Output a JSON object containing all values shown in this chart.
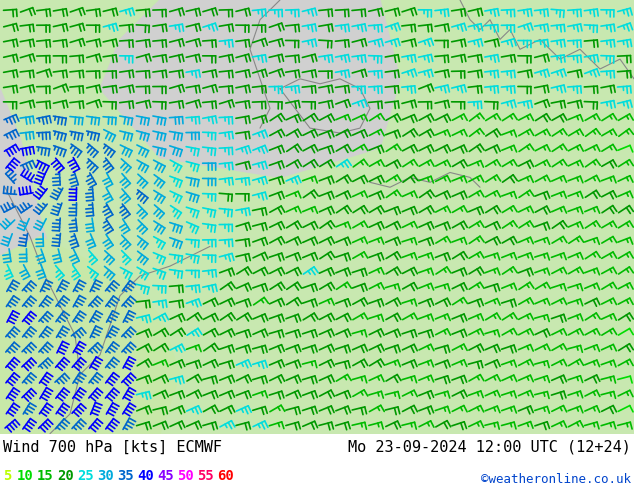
{
  "title_left": "Wind 700 hPa [kts] ECMWF",
  "title_right": "Mo 23-09-2024 12:00 UTC (12+24)",
  "credit": "©weatheronline.co.uk",
  "legend_values": [
    5,
    10,
    15,
    20,
    25,
    30,
    35,
    40,
    45,
    50,
    55,
    60
  ],
  "legend_colors": [
    "#bbff00",
    "#00dd00",
    "#00bb00",
    "#009900",
    "#00dddd",
    "#00aadd",
    "#0066cc",
    "#0000ff",
    "#8800ff",
    "#ff00ff",
    "#ff0066",
    "#ff0000"
  ],
  "bg_color": "#ffffff",
  "map_bg_sea": "#cccccc",
  "map_bg_land": "#aaddaa",
  "title_fontsize": 11,
  "legend_fontsize": 10,
  "credit_color": "#0044cc",
  "title_color": "#000000",
  "barb_lw": 1.2,
  "nx": 38,
  "ny": 28
}
